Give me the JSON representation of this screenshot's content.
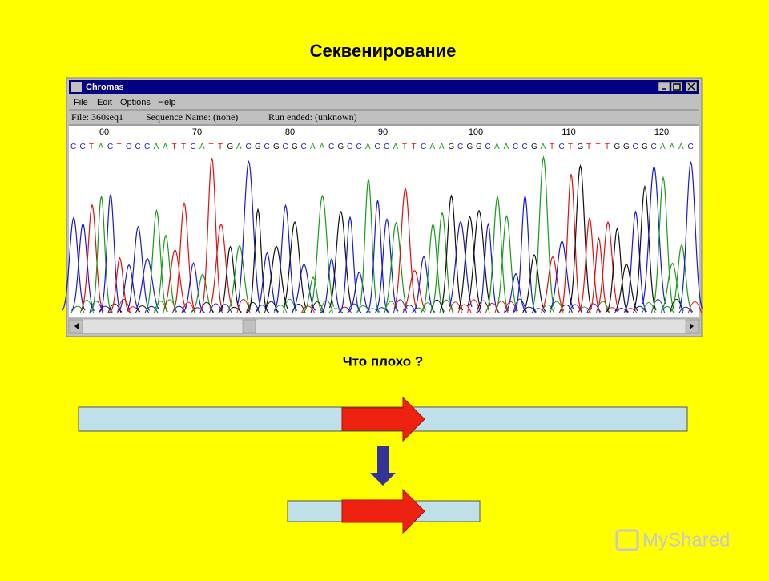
{
  "title": "Секвенирование",
  "window": {
    "title": "Chromas",
    "menu": [
      "File",
      "Edit",
      "Options",
      "Help"
    ],
    "status": [
      "File: 360seq1",
      "Sequence Name: (none)",
      "Run ended: (unknown)"
    ],
    "ruler": [
      60,
      70,
      80,
      90,
      100,
      110,
      120
    ],
    "sequence": "CCTACTCCCAATTCATTGACGCGCGCAACGCCACCATTCAAGCGGCAACCGATCTGTTTGGCGCAAAC",
    "base_colors": {
      "A": "#1a9a1a",
      "C": "#1a1acc",
      "G": "#111111",
      "T": "#dd1111"
    }
  },
  "question": "Что плохо ?",
  "watermark": "MyShared"
}
